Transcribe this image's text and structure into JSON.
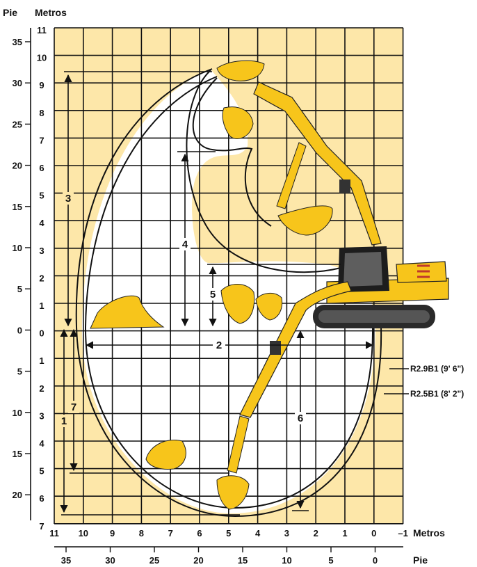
{
  "header": {
    "left_unit": "Pie",
    "right_unit": "Metros"
  },
  "left_axis": {
    "feet_ticks": [
      "35",
      "30",
      "25",
      "20",
      "15",
      "10",
      "5",
      "0",
      "5",
      "10",
      "15",
      "20"
    ],
    "meter_ticks": [
      "11",
      "10",
      "9",
      "8",
      "7",
      "6",
      "5",
      "4",
      "3",
      "2",
      "1",
      "0",
      "1",
      "2",
      "3",
      "4",
      "5",
      "6",
      "7"
    ]
  },
  "bottom_axis": {
    "meter_ticks": [
      "11",
      "10",
      "9",
      "8",
      "7",
      "6",
      "5",
      "4",
      "3",
      "2",
      "1",
      "0",
      "–1"
    ],
    "meter_unit": "Metros",
    "feet_ticks": [
      "35",
      "30",
      "25",
      "20",
      "15",
      "10",
      "5",
      "0"
    ],
    "feet_unit": "Pie"
  },
  "dimensions": [
    "1",
    "2",
    "3",
    "4",
    "5",
    "6",
    "7"
  ],
  "legend": {
    "stick_long": "R2.9B1 (9' 6\")",
    "stick_short": "R2.5B1 (8' 2\")"
  },
  "colors": {
    "grid_bg": "#fde7a9",
    "envelope_fill": "#ffffff",
    "machine": "#f7c51b",
    "line": "#111111"
  }
}
